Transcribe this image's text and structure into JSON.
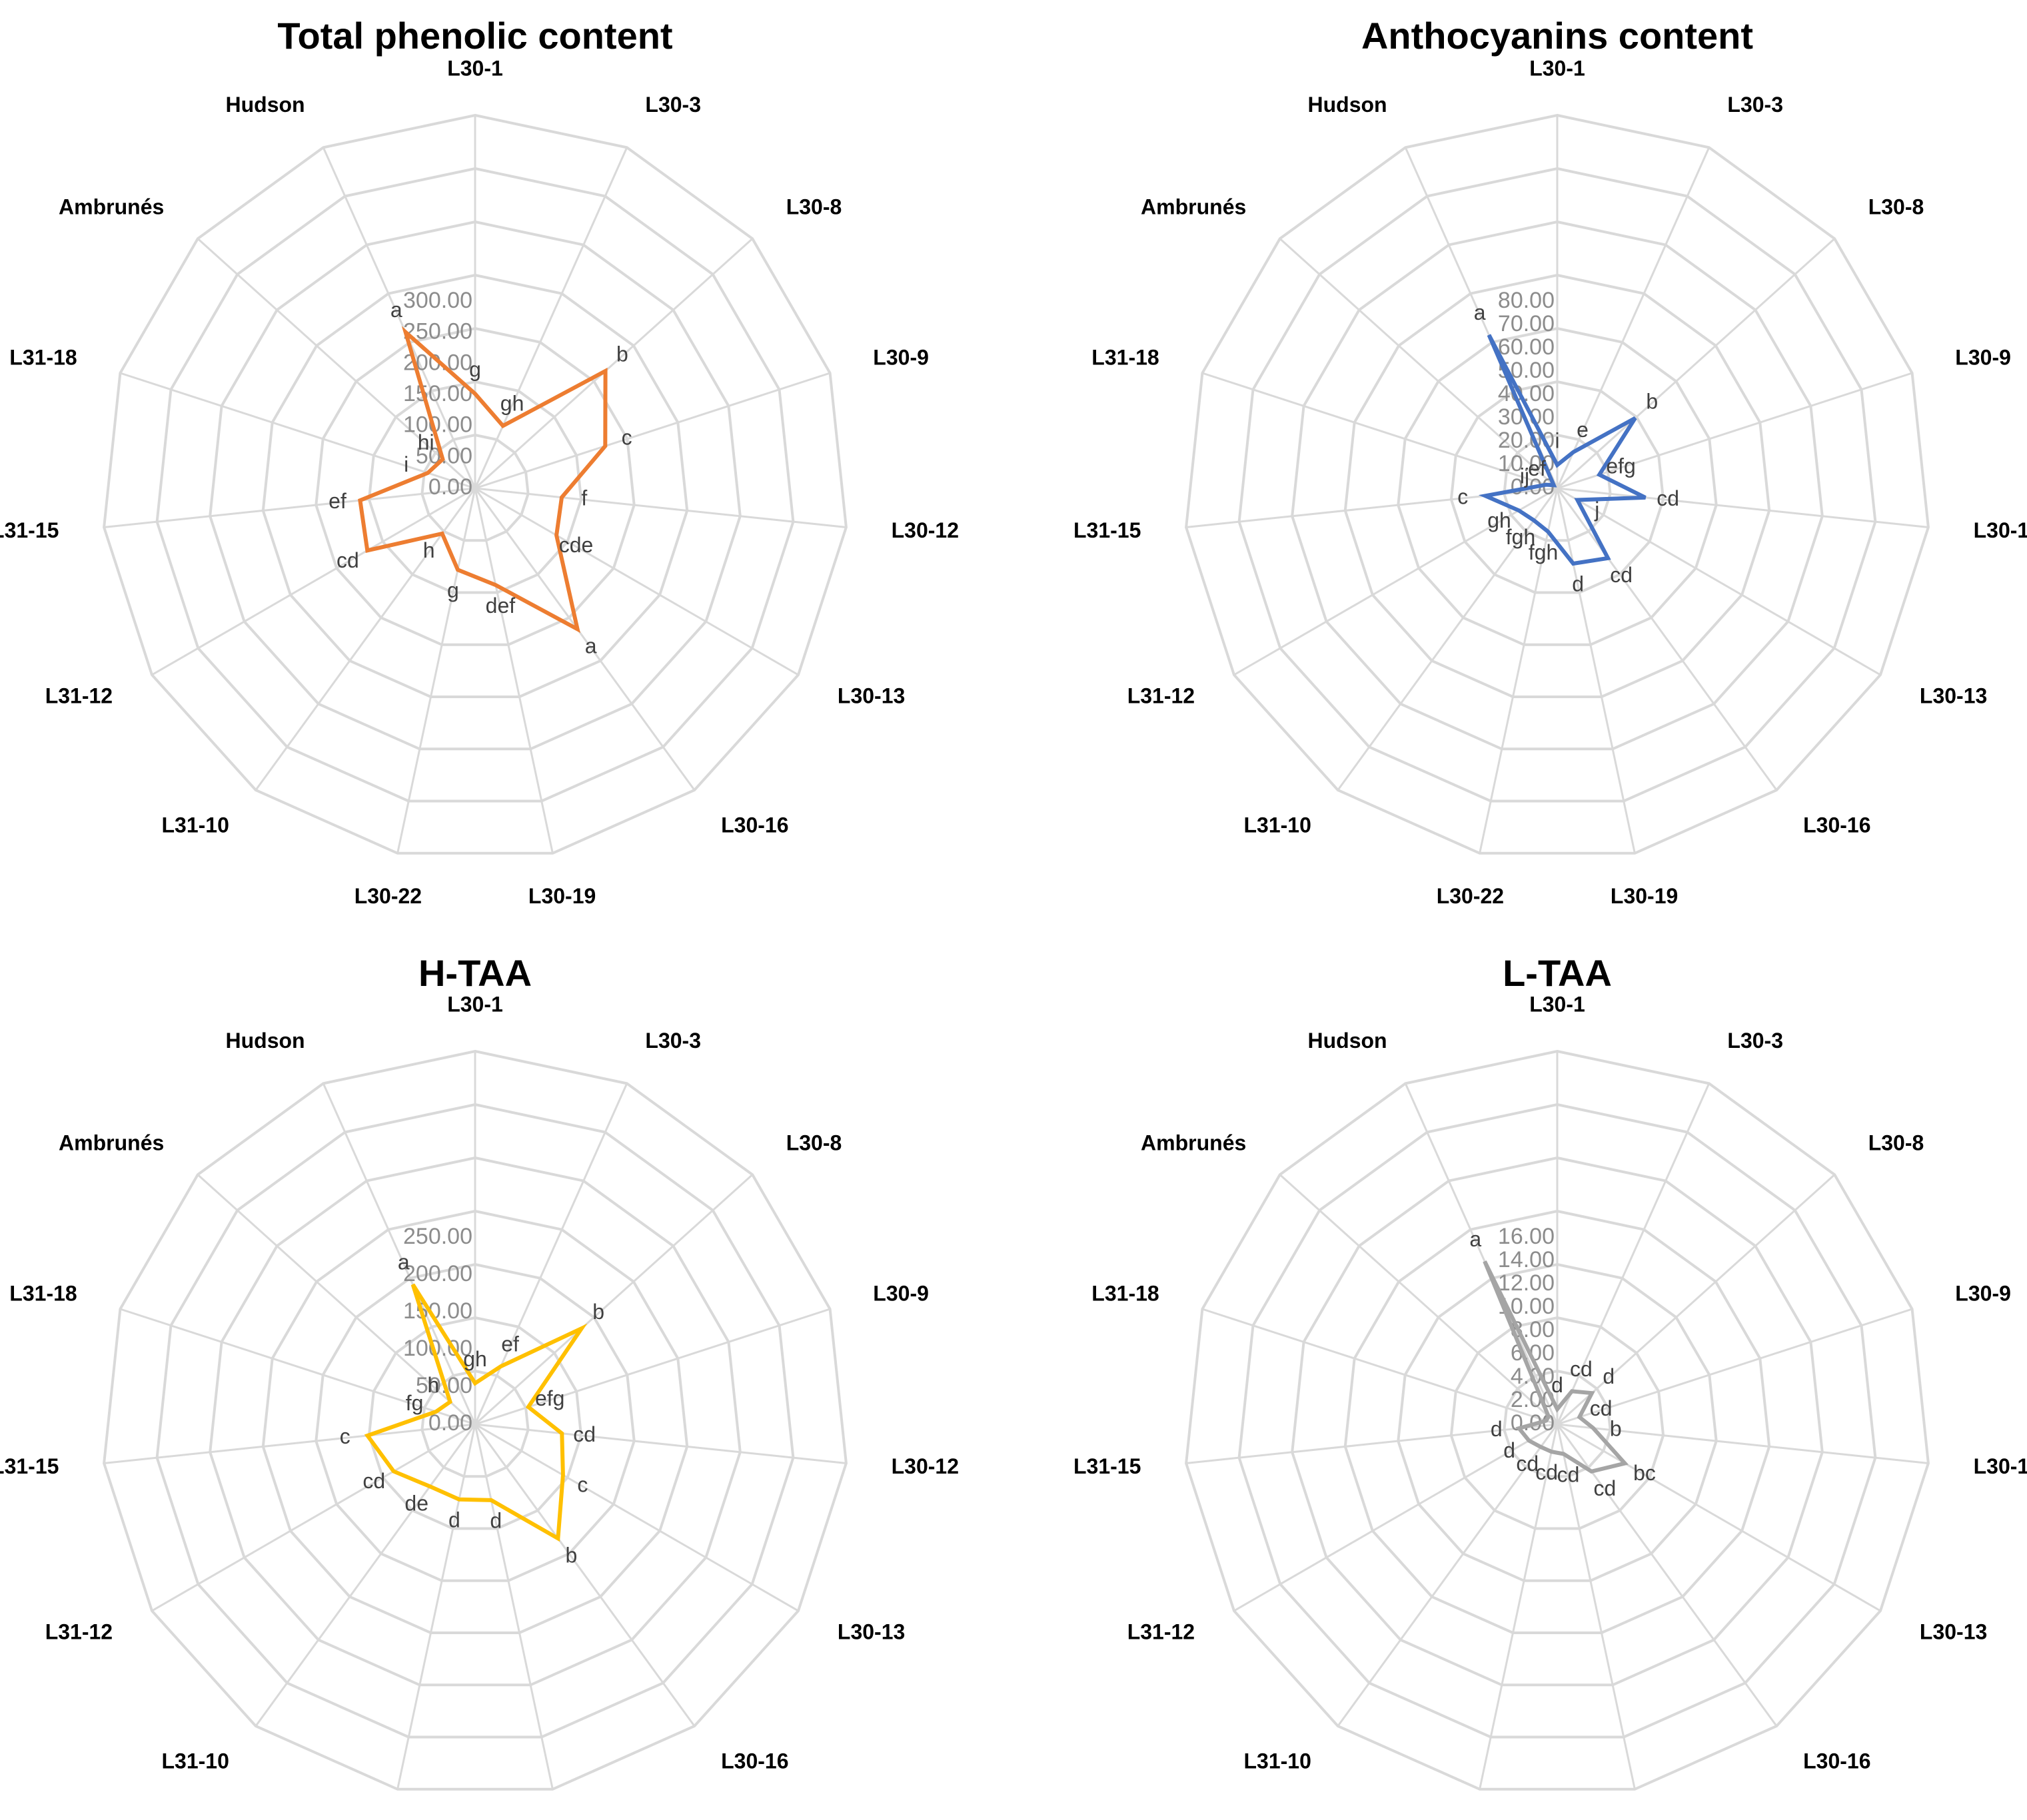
{
  "chart_data": [
    {
      "type": "radar",
      "title": "Total phenolic content",
      "color": "#ED7D31",
      "categories": [
        "L30-1",
        "L30-3",
        "L30-8",
        "L30-9",
        "L30-12",
        "L30-13",
        "L30-16",
        "L30-19",
        "L30-22",
        "L31-10",
        "L31-12",
        "L31-15",
        "L31-18",
        "Ambrunés",
        "Hudson"
      ],
      "rmin": 0,
      "rmax": 300,
      "tick_labels": [
        "0.00",
        "50.00",
        "100.00",
        "150.00",
        "200.00",
        "250.00",
        "300.00"
      ],
      "values": [
        152,
        110,
        282,
        220,
        140,
        151,
        280,
        159,
        134,
        90,
        200,
        186,
        80,
        70,
        275
      ],
      "letters": [
        "g",
        "gh",
        "b",
        "c",
        "f",
        "cde",
        "a",
        "def",
        "g",
        "h",
        "cd",
        "ef",
        "i",
        "hi",
        "a"
      ]
    },
    {
      "type": "radar",
      "title": "Anthocyanins content",
      "color": "#4472C4",
      "categories": [
        "L30-1",
        "L30-3",
        "L30-8",
        "L30-9",
        "L30-12",
        "L30-13",
        "L30-16",
        "L30-19",
        "L30-22",
        "L31-10",
        "L31-12",
        "L31-15",
        "L31-18",
        "Ambrunés",
        "Hudson"
      ],
      "rmin": 0,
      "rmax": 80,
      "tick_labels": [
        "0.00",
        "10.00",
        "20.00",
        "30.00",
        "40.00",
        "50.00",
        "60.00",
        "70.00",
        "80.00"
      ],
      "values": [
        10,
        17,
        45,
        19,
        38,
        10,
        37,
        33,
        19,
        17,
        19,
        31,
        5,
        2,
        72
      ],
      "letters": [
        "i",
        "e",
        "b",
        "efg",
        "cd",
        "j",
        "cd",
        "d",
        "fgh",
        "fgh",
        "gh",
        "c",
        "ij",
        "ef",
        "a"
      ]
    },
    {
      "type": "radar",
      "title": "H-TAA",
      "color": "#FFC000",
      "categories": [
        "L30-1",
        "L30-3",
        "L30-8",
        "L30-9",
        "L30-12",
        "L30-13",
        "L30-16",
        "L30-19",
        "L30-22",
        "L31-10",
        "L31-12",
        "L31-15",
        "L31-18",
        "Ambrunés",
        "Hudson"
      ],
      "rmin": 0,
      "rmax": 250,
      "tick_labels": [
        "0.00",
        "50.00",
        "100.00",
        "150.00",
        "200.00",
        "250.00"
      ],
      "values": [
        55,
        85,
        192,
        75,
        117,
        136,
        189,
        104,
        103,
        103,
        126,
        145,
        55,
        45,
        205
      ],
      "letters": [
        "gh",
        "ef",
        "b",
        "efg",
        "cd",
        "c",
        "b",
        "d",
        "d",
        "de",
        "cd",
        "c",
        "fg",
        "h",
        "a"
      ]
    },
    {
      "type": "radar",
      "title": "L-TAA",
      "color": "#A5A5A5",
      "categories": [
        "L30-1",
        "L30-3",
        "L30-8",
        "L30-9",
        "L30-12",
        "L30-13",
        "L30-16",
        "L30-19",
        "L30-22",
        "L31-10",
        "L31-12",
        "L31-15",
        "L31-18",
        "Ambrunés",
        "Hudson"
      ],
      "rmin": 0,
      "rmax": 16,
      "tick_labels": [
        "0.00",
        "2.00",
        "4.00",
        "6.00",
        "8.00",
        "10.00",
        "12.00",
        "14.00",
        "16.00"
      ],
      "values": [
        1.3,
        3.1,
        4.0,
        2.0,
        3.1,
        6.7,
        5.0,
        2.6,
        2.4,
        2.4,
        2.8,
        3.3,
        1.0,
        1.0,
        15.3
      ],
      "letters": [
        "d",
        "cd",
        "d",
        "cd",
        "b",
        "bc",
        "cd",
        "cd",
        "cd",
        "cd",
        "d",
        "d",
        "",
        "",
        "a"
      ]
    }
  ]
}
